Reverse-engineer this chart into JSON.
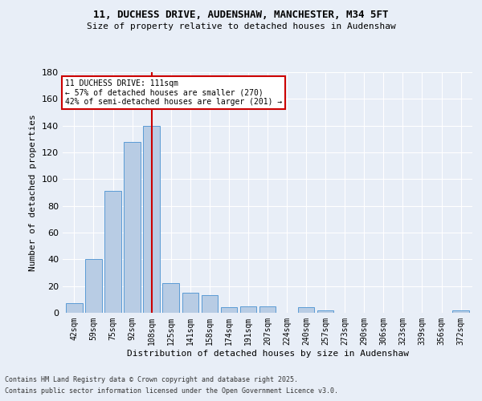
{
  "title1": "11, DUCHESS DRIVE, AUDENSHAW, MANCHESTER, M34 5FT",
  "title2": "Size of property relative to detached houses in Audenshaw",
  "xlabel": "Distribution of detached houses by size in Audenshaw",
  "ylabel": "Number of detached properties",
  "categories": [
    "42sqm",
    "59sqm",
    "75sqm",
    "92sqm",
    "108sqm",
    "125sqm",
    "141sqm",
    "158sqm",
    "174sqm",
    "191sqm",
    "207sqm",
    "224sqm",
    "240sqm",
    "257sqm",
    "273sqm",
    "290sqm",
    "306sqm",
    "323sqm",
    "339sqm",
    "356sqm",
    "372sqm"
  ],
  "values": [
    7,
    40,
    91,
    128,
    140,
    22,
    15,
    13,
    4,
    5,
    5,
    0,
    4,
    2,
    0,
    0,
    0,
    0,
    0,
    0,
    2
  ],
  "bar_color": "#b8cce4",
  "bar_edge_color": "#5b9bd5",
  "bg_color": "#e8eef7",
  "grid_color": "#ffffff",
  "vline_x_index": 4,
  "vline_color": "#cc0000",
  "annotation_line1": "11 DUCHESS DRIVE: 111sqm",
  "annotation_line2": "← 57% of detached houses are smaller (270)",
  "annotation_line3": "42% of semi-detached houses are larger (201) →",
  "annotation_box_color": "#ffffff",
  "annotation_box_edge": "#cc0000",
  "footer1": "Contains HM Land Registry data © Crown copyright and database right 2025.",
  "footer2": "Contains public sector information licensed under the Open Government Licence v3.0.",
  "ylim": [
    0,
    180
  ],
  "yticks": [
    0,
    20,
    40,
    60,
    80,
    100,
    120,
    140,
    160,
    180
  ]
}
